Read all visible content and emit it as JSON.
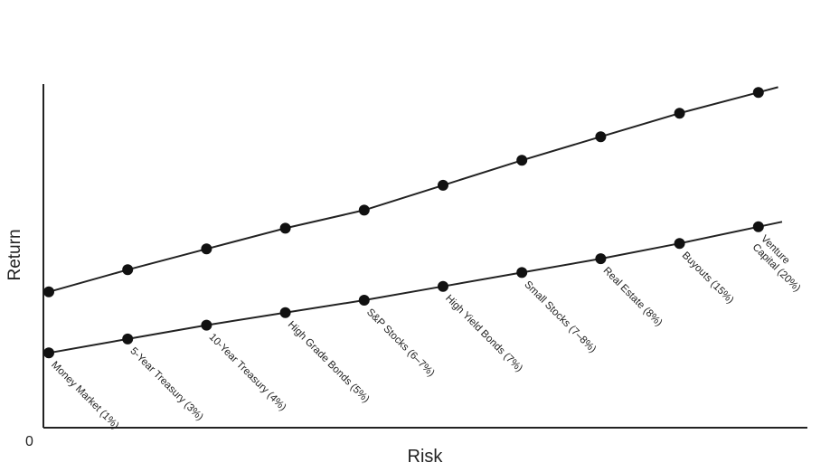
{
  "chart_data": {
    "type": "line",
    "xlabel": "Risk",
    "ylabel": "Return",
    "origin_label": "0",
    "categories": [
      "Money Market (1%)",
      "5-Year Treasury (3%)",
      "10-Year Treasury (4%)",
      "High Grade Bonds (5%)",
      "S&P Stocks (6–7%)",
      "High Yield Bonds (7%)",
      "Small Stocks (7–8%)",
      "Real Estate (8%)",
      "Buyouts (15%)",
      "Venture Capital (20%)"
    ],
    "categories_lines": [
      [
        "Money Market (1%)"
      ],
      [
        "5-Year Treasury (3%)"
      ],
      [
        "10-Year Treasury (4%)"
      ],
      [
        "High Grade Bonds (5%)"
      ],
      [
        "S&P Stocks (6–7%)"
      ],
      [
        "High Yield Bonds (7%)"
      ],
      [
        "Small Stocks (7–8%)"
      ],
      [
        "Real Estate (8%)"
      ],
      [
        "Buyouts (15%)"
      ],
      [
        "Venture",
        "Capital (20%)"
      ]
    ],
    "upper_points": [
      [
        0,
        0.49
      ],
      [
        1,
        0.57
      ],
      [
        2,
        0.645
      ],
      [
        3,
        0.72
      ],
      [
        4,
        0.785
      ],
      [
        5,
        0.875
      ],
      [
        6,
        0.965
      ],
      [
        7,
        1.05
      ],
      [
        8,
        1.135
      ],
      [
        9,
        1.21
      ]
    ],
    "upper_extend": 9.25,
    "lower_points": [
      [
        0,
        0.27
      ],
      [
        1,
        0.32
      ],
      [
        2,
        0.37
      ],
      [
        3,
        0.415
      ],
      [
        4,
        0.46
      ],
      [
        5,
        0.51
      ],
      [
        6,
        0.56
      ],
      [
        7,
        0.61
      ],
      [
        8,
        0.665
      ],
      [
        9,
        0.725
      ]
    ],
    "lower_extend": 9.3,
    "xlim": [
      0,
      10
    ],
    "ylim": [
      0,
      1.24
    ],
    "grid": false,
    "legend": "none"
  }
}
